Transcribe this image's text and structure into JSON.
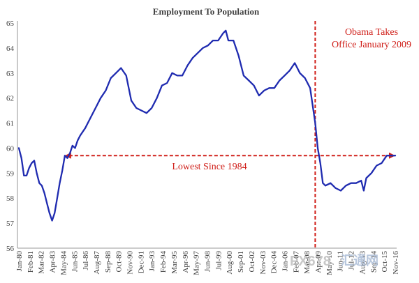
{
  "chart_data": {
    "type": "line",
    "title": "Employment To Population",
    "xlabel": "",
    "ylabel": "",
    "ylim": [
      56,
      65
    ],
    "yticks": [
      56,
      57,
      58,
      59,
      60,
      61,
      62,
      63,
      64,
      65
    ],
    "grid": false,
    "line_color": "#1f2bb0",
    "annotation_color": "#d0201a",
    "x_tick_labels": [
      "Jan-80",
      "Feb-81",
      "Mar-82",
      "Apr-83",
      "May-84",
      "Jun-85",
      "Jul-86",
      "Aug-87",
      "Sep-88",
      "Oct-89",
      "Nov-90",
      "Dec-91",
      "Jan-93",
      "Feb-94",
      "Mar-95",
      "Apr-96",
      "May-97",
      "Jun-98",
      "Jul-99",
      "Aug-00",
      "Sep-01",
      "Oct-02",
      "Nov-03",
      "Dec-04",
      "Jan-06",
      "Feb-07",
      "Mar-08",
      "Apr-09",
      "May-10",
      "Jun-11",
      "Jul-12",
      "Aug-13",
      "Sep-14",
      "Oct-15",
      "Nov-16"
    ],
    "series": [
      {
        "points": [
          [
            "1980-01",
            60.0
          ],
          [
            "1980-04",
            59.6
          ],
          [
            "1980-07",
            58.9
          ],
          [
            "1980-10",
            58.9
          ],
          [
            "1981-01",
            59.2
          ],
          [
            "1981-04",
            59.4
          ],
          [
            "1981-07",
            59.5
          ],
          [
            "1981-10",
            59.0
          ],
          [
            "1982-01",
            58.6
          ],
          [
            "1982-04",
            58.5
          ],
          [
            "1982-07",
            58.2
          ],
          [
            "1982-10",
            57.8
          ],
          [
            "1983-01",
            57.4
          ],
          [
            "1983-04",
            57.1
          ],
          [
            "1983-07",
            57.4
          ],
          [
            "1983-10",
            58.0
          ],
          [
            "1984-01",
            58.6
          ],
          [
            "1984-04",
            59.1
          ],
          [
            "1984-07",
            59.7
          ],
          [
            "1984-10",
            59.6
          ],
          [
            "1985-01",
            59.8
          ],
          [
            "1985-04",
            60.1
          ],
          [
            "1985-07",
            60.0
          ],
          [
            "1985-10",
            60.3
          ],
          [
            "1986-01",
            60.5
          ],
          [
            "1986-07",
            60.8
          ],
          [
            "1987-01",
            61.2
          ],
          [
            "1987-07",
            61.6
          ],
          [
            "1988-01",
            62.0
          ],
          [
            "1988-07",
            62.3
          ],
          [
            "1989-01",
            62.8
          ],
          [
            "1989-07",
            63.0
          ],
          [
            "1990-01",
            63.2
          ],
          [
            "1990-07",
            62.9
          ],
          [
            "1991-01",
            61.9
          ],
          [
            "1991-07",
            61.6
          ],
          [
            "1992-01",
            61.5
          ],
          [
            "1992-07",
            61.4
          ],
          [
            "1993-01",
            61.6
          ],
          [
            "1993-07",
            62.0
          ],
          [
            "1994-01",
            62.5
          ],
          [
            "1994-07",
            62.6
          ],
          [
            "1995-01",
            63.0
          ],
          [
            "1995-07",
            62.9
          ],
          [
            "1996-01",
            62.9
          ],
          [
            "1996-07",
            63.3
          ],
          [
            "1997-01",
            63.6
          ],
          [
            "1997-07",
            63.8
          ],
          [
            "1998-01",
            64.0
          ],
          [
            "1998-07",
            64.1
          ],
          [
            "1999-01",
            64.3
          ],
          [
            "1999-07",
            64.3
          ],
          [
            "2000-01",
            64.6
          ],
          [
            "2000-04",
            64.7
          ],
          [
            "2000-07",
            64.3
          ],
          [
            "2001-01",
            64.3
          ],
          [
            "2001-07",
            63.7
          ],
          [
            "2002-01",
            62.9
          ],
          [
            "2002-07",
            62.7
          ],
          [
            "2003-01",
            62.5
          ],
          [
            "2003-07",
            62.1
          ],
          [
            "2004-01",
            62.3
          ],
          [
            "2004-07",
            62.4
          ],
          [
            "2005-01",
            62.4
          ],
          [
            "2005-07",
            62.7
          ],
          [
            "2006-01",
            62.9
          ],
          [
            "2006-07",
            63.1
          ],
          [
            "2007-01",
            63.4
          ],
          [
            "2007-07",
            63.0
          ],
          [
            "2008-01",
            62.8
          ],
          [
            "2008-07",
            62.4
          ],
          [
            "2009-01",
            61.0
          ],
          [
            "2009-04",
            60.0
          ],
          [
            "2009-07",
            59.4
          ],
          [
            "2009-10",
            58.6
          ],
          [
            "2010-01",
            58.5
          ],
          [
            "2010-07",
            58.6
          ],
          [
            "2011-01",
            58.4
          ],
          [
            "2011-07",
            58.3
          ],
          [
            "2012-01",
            58.5
          ],
          [
            "2012-07",
            58.6
          ],
          [
            "2013-01",
            58.6
          ],
          [
            "2013-07",
            58.7
          ],
          [
            "2013-10",
            58.3
          ],
          [
            "2014-01",
            58.8
          ],
          [
            "2014-07",
            59.0
          ],
          [
            "2015-01",
            59.3
          ],
          [
            "2015-07",
            59.4
          ],
          [
            "2016-01",
            59.7
          ],
          [
            "2016-04",
            59.7
          ],
          [
            "2016-07",
            59.7
          ],
          [
            "2016-11",
            59.7
          ]
        ]
      }
    ],
    "annotations": [
      {
        "id": "obama",
        "date": "2009-01",
        "lines": [
          "Obama Takes",
          "Office January 2009"
        ]
      },
      {
        "id": "lowest",
        "value": 59.7,
        "from": "1984-07",
        "to": "2016-11",
        "text": "Lowest Since 1984"
      }
    ]
  },
  "watermark": {
    "brand": "FX678",
    "suffix": "汇通网"
  }
}
